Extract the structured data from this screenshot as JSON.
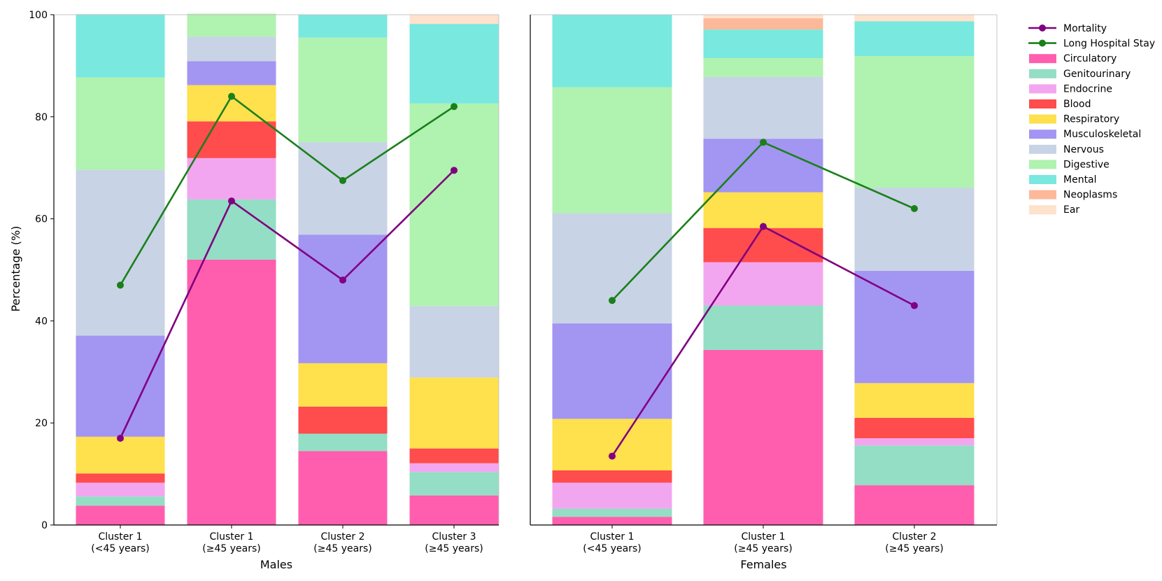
{
  "chart_data": {
    "type": "bar",
    "stacked": true,
    "ylabel": "Percentage (%)",
    "ylim": [
      0,
      100
    ],
    "yticks": [
      0,
      20,
      40,
      60,
      80,
      100
    ],
    "legend_position": "right",
    "legend": [
      "Mortality",
      "Long Hospital Stay",
      "Circulatory",
      "Genitourinary",
      "Endocrine",
      "Blood",
      "Respiratory",
      "Musculoskeletal",
      "Nervous",
      "Digestive",
      "Mental",
      "Neoplasms",
      "Ear"
    ],
    "line_series": [
      {
        "name": "Mortality",
        "color": "#800080"
      },
      {
        "name": "Long Hospital Stay",
        "color": "#1a801a"
      }
    ],
    "categories_series": [
      {
        "name": "Circulatory",
        "color": "#ff5eae"
      },
      {
        "name": "Genitourinary",
        "color": "#93dec4"
      },
      {
        "name": "Endocrine",
        "color": "#f3a6f0"
      },
      {
        "name": "Blood",
        "color": "#ff4c4c"
      },
      {
        "name": "Respiratory",
        "color": "#ffe04d"
      },
      {
        "name": "Musculoskeletal",
        "color": "#a395f2"
      },
      {
        "name": "Nervous",
        "color": "#c8d3e5"
      },
      {
        "name": "Digestive",
        "color": "#b0f2b0"
      },
      {
        "name": "Mental",
        "color": "#79e8df"
      },
      {
        "name": "Neoplasms",
        "color": "#fdb89a"
      },
      {
        "name": "Ear",
        "color": "#fee2cc"
      }
    ],
    "panels": [
      {
        "xlabel": "Males",
        "bars": [
          {
            "label_line1": "Cluster 1",
            "label_line2": "(<45 years)",
            "values": [
              3.8,
              1.8,
              2.7,
              1.8,
              7.2,
              19.8,
              32.5,
              18.1,
              12.4,
              0,
              0
            ],
            "mortality": 17,
            "long_stay": 47
          },
          {
            "label_line1": "Cluster 1",
            "label_line2": "(≥45 years)",
            "values": [
              52,
              11.8,
              8.1,
              7.2,
              7.1,
              4.7,
              4.8,
              4.5,
              0,
              0,
              0
            ],
            "mortality": 63.5,
            "long_stay": 84
          },
          {
            "label_line1": "Cluster 2",
            "label_line2": "(≥45 years)",
            "values": [
              14.5,
              3.4,
              0,
              5.3,
              8.5,
              25.2,
              18.1,
              20.5,
              4.5,
              0,
              0
            ],
            "mortality": 48,
            "long_stay": 67.5
          },
          {
            "label_line1": "Cluster 3",
            "label_line2": "(≥45 years)",
            "values": [
              5.8,
              4.6,
              1.7,
              2.9,
              13.9,
              0,
              14,
              39.7,
              15.6,
              0,
              1.8
            ],
            "mortality": 69.5,
            "long_stay": 82
          }
        ]
      },
      {
        "xlabel": "Females",
        "bars": [
          {
            "label_line1": "Cluster 1",
            "label_line2": "(<45 years)",
            "values": [
              1.6,
              1.6,
              5.1,
              2.4,
              10.1,
              18.7,
              21.6,
              24.7,
              14.2,
              0,
              0
            ],
            "mortality": 13.5,
            "long_stay": 44
          },
          {
            "label_line1": "Cluster 1",
            "label_line2": "(≥45 years)",
            "values": [
              34.3,
              8.7,
              8.5,
              6.7,
              7,
              10.5,
              12.1,
              3.7,
              5.6,
              2.2,
              0.7
            ],
            "mortality": 58.5,
            "long_stay": 75
          },
          {
            "label_line1": "Cluster 2",
            "label_line2": "(≥45 years)",
            "values": [
              7.8,
              7.8,
              1.4,
              4,
              6.8,
              22,
              16.3,
              25.8,
              6.8,
              0,
              1.3
            ],
            "mortality": 43,
            "long_stay": 62
          }
        ]
      }
    ]
  }
}
